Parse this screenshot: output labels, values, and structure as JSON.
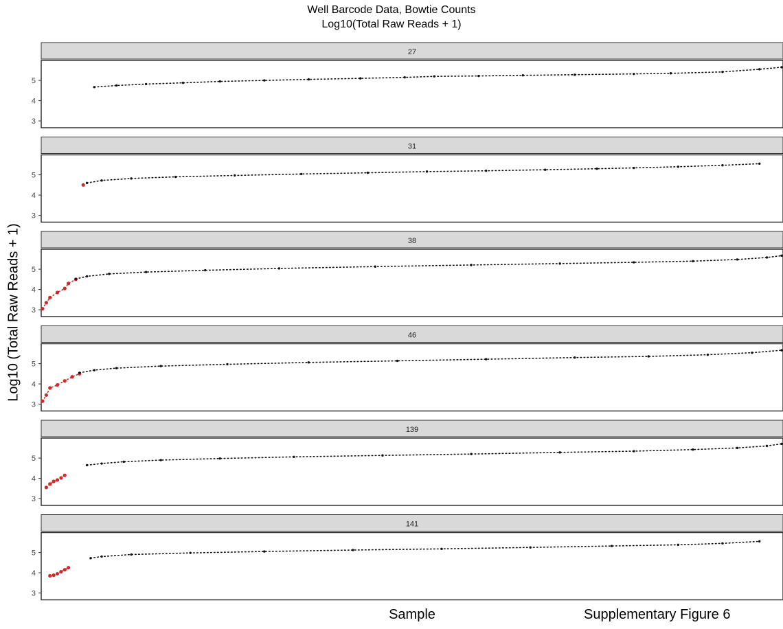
{
  "header": {
    "title_line1": "Well Barcode Data, Bowtie Counts",
    "title_line2": "Log10(Total Raw Reads + 1)"
  },
  "axes": {
    "ylabel": "Log10 (Total Raw Reads + 1)",
    "xlabel": "Sample"
  },
  "caption": "Supplementary Figure 6",
  "colors": {
    "normal": "#111111",
    "flagged": "#d62728",
    "strip": "#d9d9d9"
  },
  "chart_data": {
    "type": "scatter",
    "facet_layout": "vertical",
    "shared_y_ticks": [
      3,
      4,
      5
    ],
    "ylim": [
      2.8,
      5.85
    ],
    "x_ticks_shown": false,
    "grid": false,
    "legend": "none",
    "panels": [
      {
        "label": "27",
        "flagged": [],
        "normal": {
          "x": [
            0.07,
            0.1,
            0.14,
            0.19,
            0.24,
            0.3,
            0.36,
            0.43,
            0.49,
            0.53,
            0.59,
            0.65,
            0.72,
            0.8,
            0.85,
            0.92,
            0.97,
            1.0
          ],
          "y": [
            4.67,
            4.75,
            4.82,
            4.88,
            4.95,
            5.0,
            5.05,
            5.1,
            5.15,
            5.2,
            5.22,
            5.25,
            5.28,
            5.32,
            5.35,
            5.42,
            5.55,
            5.65
          ]
        }
      },
      {
        "label": "31",
        "flagged": {
          "x": [
            0.055
          ],
          "y": [
            4.5
          ]
        },
        "normal": {
          "x": [
            0.06,
            0.08,
            0.12,
            0.18,
            0.26,
            0.35,
            0.44,
            0.52,
            0.6,
            0.68,
            0.75,
            0.8,
            0.86,
            0.92,
            0.97
          ],
          "y": [
            4.6,
            4.72,
            4.82,
            4.9,
            4.97,
            5.04,
            5.1,
            5.16,
            5.2,
            5.25,
            5.3,
            5.34,
            5.4,
            5.47,
            5.55
          ]
        }
      },
      {
        "label": "38",
        "flagged": {
          "x": [
            0.0,
            0.005,
            0.01,
            0.02,
            0.03,
            0.035,
            0.045
          ],
          "y": [
            3.05,
            3.35,
            3.6,
            3.85,
            4.05,
            4.3,
            4.5
          ]
        },
        "normal": {
          "x": [
            0.045,
            0.06,
            0.09,
            0.14,
            0.22,
            0.32,
            0.45,
            0.58,
            0.7,
            0.8,
            0.88,
            0.94,
            0.98,
            1.0
          ],
          "y": [
            4.52,
            4.65,
            4.77,
            4.86,
            4.95,
            5.04,
            5.13,
            5.21,
            5.28,
            5.34,
            5.4,
            5.48,
            5.58,
            5.67
          ]
        }
      },
      {
        "label": "46",
        "flagged": {
          "x": [
            0.0,
            0.005,
            0.01,
            0.02,
            0.03,
            0.04,
            0.05
          ],
          "y": [
            3.15,
            3.45,
            3.8,
            3.95,
            4.15,
            4.35,
            4.5
          ]
        },
        "normal": {
          "x": [
            0.05,
            0.07,
            0.1,
            0.16,
            0.25,
            0.36,
            0.48,
            0.6,
            0.72,
            0.82,
            0.9,
            0.96,
            1.0
          ],
          "y": [
            4.55,
            4.68,
            4.78,
            4.88,
            4.97,
            5.06,
            5.14,
            5.22,
            5.3,
            5.36,
            5.44,
            5.54,
            5.66
          ]
        }
      },
      {
        "label": "139",
        "flagged": {
          "x": [
            0.005,
            0.01,
            0.015,
            0.02,
            0.025,
            0.03
          ],
          "y": [
            3.55,
            3.72,
            3.85,
            3.92,
            4.02,
            4.15
          ]
        },
        "normal": {
          "x": [
            0.06,
            0.08,
            0.11,
            0.16,
            0.24,
            0.34,
            0.46,
            0.58,
            0.7,
            0.8,
            0.88,
            0.94,
            0.98,
            1.0
          ],
          "y": [
            4.65,
            4.73,
            4.82,
            4.9,
            4.98,
            5.06,
            5.13,
            5.2,
            5.28,
            5.34,
            5.42,
            5.5,
            5.6,
            5.7
          ]
        }
      },
      {
        "label": "141",
        "flagged": {
          "x": [
            0.01,
            0.015,
            0.02,
            0.025,
            0.03,
            0.035
          ],
          "y": [
            3.85,
            3.88,
            3.95,
            4.05,
            4.15,
            4.25
          ]
        },
        "normal": {
          "x": [
            0.065,
            0.08,
            0.12,
            0.2,
            0.3,
            0.42,
            0.54,
            0.66,
            0.77,
            0.86,
            0.92,
            0.97
          ],
          "y": [
            4.72,
            4.8,
            4.9,
            4.98,
            5.05,
            5.12,
            5.18,
            5.25,
            5.32,
            5.38,
            5.45,
            5.55
          ]
        }
      }
    ]
  }
}
